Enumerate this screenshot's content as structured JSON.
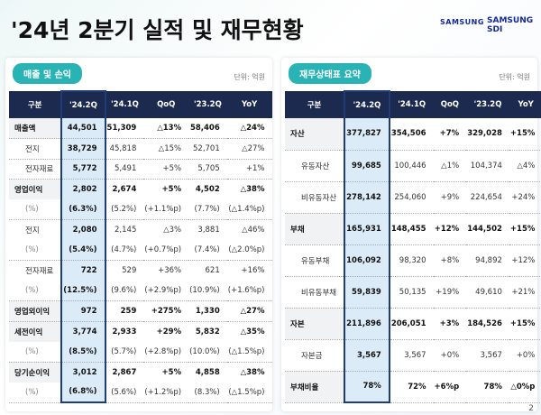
{
  "header": {
    "title": "'24년 2분기 실적 및 재무현황",
    "logos": [
      "SAMSUNG",
      "SAMSUNG SDI"
    ]
  },
  "left": {
    "label": "매출 및 손익",
    "unit": "단위: 억원",
    "columns": [
      "구분",
      "'24.2Q",
      "'24.1Q",
      "QoQ",
      "'23.2Q",
      "YoY"
    ],
    "groups": [
      [
        [
          "매출액",
          "44,501",
          "51,309",
          "△13%",
          "58,406",
          "△24%"
        ]
      ],
      [
        [
          "전지",
          "38,729",
          "45,818",
          "△15%",
          "52,701",
          "△27%"
        ]
      ],
      [
        [
          "전자재료",
          "5,772",
          "5,491",
          "+5%",
          "5,705",
          "+1%"
        ]
      ],
      [
        [
          "영업이익",
          "2,802",
          "2,674",
          "+5%",
          "4,502",
          "△38%"
        ],
        [
          "(%)",
          "(6.3%)",
          "(5.2%)",
          "(+1.1%p)",
          "(7.7%)",
          "(△1.4%p)"
        ]
      ],
      [
        [
          "전지",
          "2,080",
          "2,145",
          "△3%",
          "3,881",
          "△46%"
        ],
        [
          "(%)",
          "(5.4%)",
          "(4.7%)",
          "(+0.7%p)",
          "(7.4%)",
          "(△2.0%p)"
        ]
      ],
      [
        [
          "전자재료",
          "722",
          "529",
          "+36%",
          "621",
          "+16%"
        ],
        [
          "(%)",
          "(12.5%)",
          "(9.6%)",
          "(+2.9%p)",
          "(10.9%)",
          "(+1.6%p)"
        ]
      ],
      [
        [
          "영업외이익",
          "972",
          "259",
          "+275%",
          "1,330",
          "△27%"
        ]
      ],
      [
        [
          "세전이익",
          "3,774",
          "2,933",
          "+29%",
          "5,832",
          "△35%"
        ],
        [
          "(%)",
          "(8.5%)",
          "(5.7%)",
          "(+2.8%p)",
          "(10.0%)",
          "(△1.5%p)"
        ]
      ],
      [
        [
          "당기순이익",
          "3,012",
          "2,867",
          "+5%",
          "4,858",
          "△38%"
        ],
        [
          "(%)",
          "(6.8%)",
          "(5.6%)",
          "(+1.2%p)",
          "(8.3%)",
          "(△1.5%p)"
        ]
      ]
    ]
  },
  "right": {
    "label": "재무상태표 요약",
    "unit": "단위: 억원",
    "columns": [
      "구분",
      "'24.2Q",
      "'24.1Q",
      "QoQ",
      "'23.2Q",
      "YoY"
    ],
    "groups": [
      [
        [
          "자산",
          "377,827",
          "354,506",
          "+7%",
          "329,028",
          "+15%"
        ]
      ],
      [
        [
          "유동자산",
          "99,685",
          "100,446",
          "△1%",
          "104,374",
          "△4%"
        ]
      ],
      [
        [
          "비유동자산",
          "278,142",
          "254,060",
          "+9%",
          "224,654",
          "+24%"
        ]
      ],
      [
        [
          "부채",
          "165,931",
          "148,455",
          "+12%",
          "144,502",
          "+15%"
        ]
      ],
      [
        [
          "유동부채",
          "106,092",
          "98,320",
          "+8%",
          "94,892",
          "+12%"
        ]
      ],
      [
        [
          "비유동부채",
          "59,839",
          "50,135",
          "+19%",
          "49,610",
          "+21%"
        ]
      ],
      [
        [
          "자본",
          "211,896",
          "206,051",
          "+3%",
          "184,526",
          "+15%"
        ]
      ],
      [
        [
          "자본금",
          "3,567",
          "3,567",
          "+0%",
          "3,567",
          "+0%"
        ]
      ],
      [
        [
          "부채비율",
          "78%",
          "72%",
          "+6%p",
          "78%",
          "△0%p"
        ]
      ]
    ]
  },
  "page": "2"
}
